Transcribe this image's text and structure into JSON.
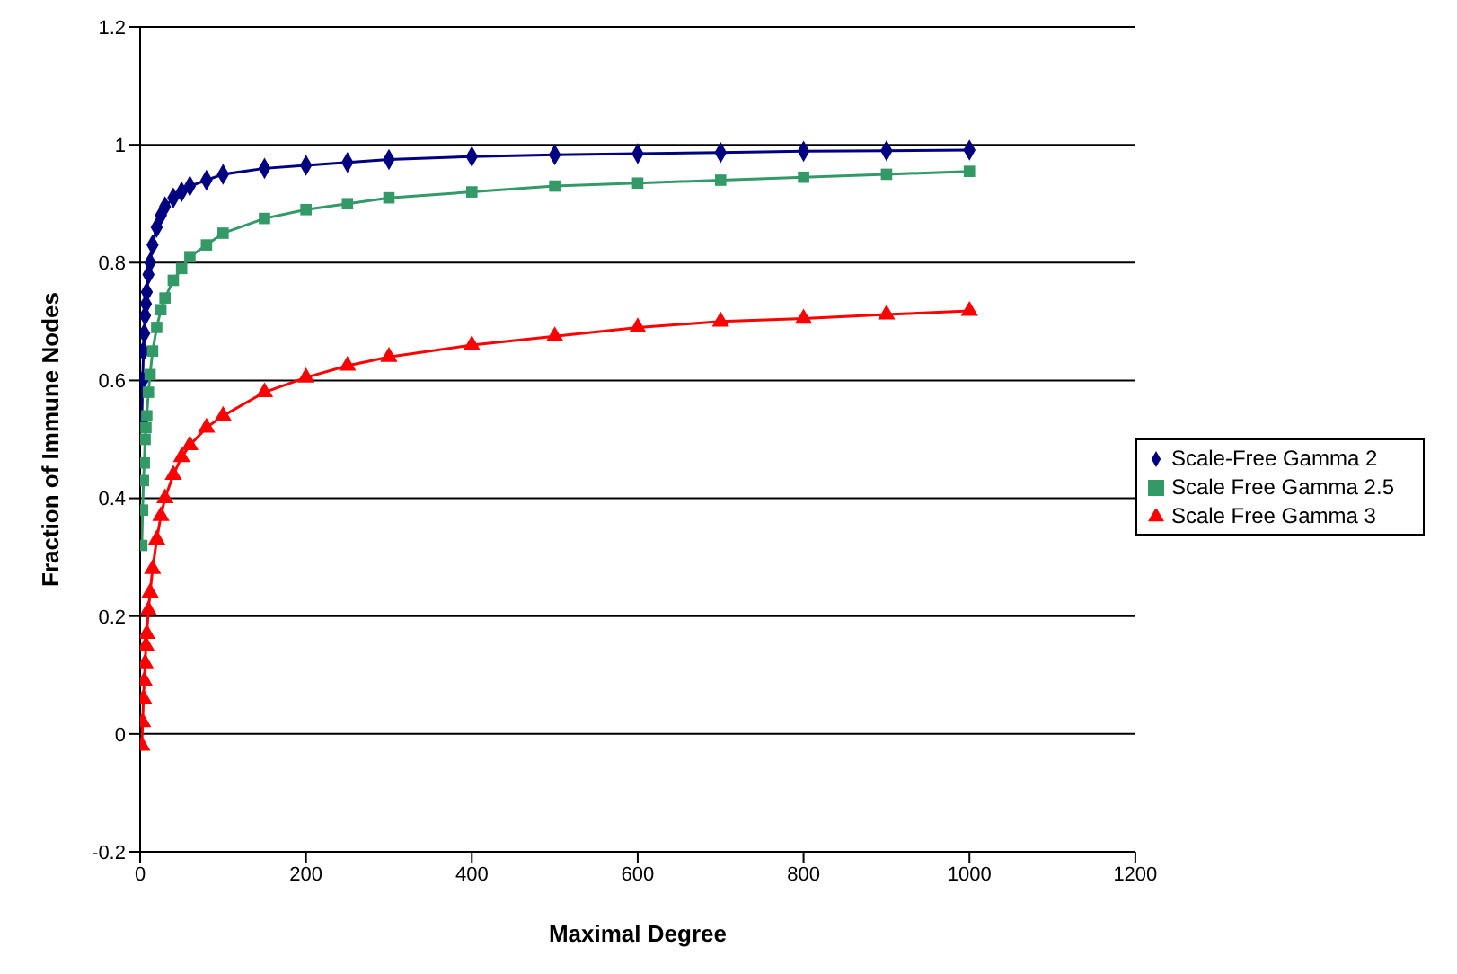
{
  "chart_data": {
    "type": "line",
    "xlabel": "Maximal Degree",
    "ylabel": "Fraction of Immune Nodes",
    "x": [
      2,
      3,
      4,
      5,
      6,
      7,
      8,
      10,
      12,
      15,
      20,
      25,
      30,
      40,
      50,
      60,
      80,
      100,
      150,
      200,
      250,
      300,
      400,
      500,
      600,
      700,
      800,
      900,
      1000
    ],
    "series": [
      {
        "name": "Scale-Free Gamma 2",
        "color": "#000080",
        "marker": "diamond",
        "values": [
          0.53,
          0.6,
          0.65,
          0.68,
          0.71,
          0.73,
          0.75,
          0.78,
          0.8,
          0.83,
          0.86,
          0.88,
          0.895,
          0.91,
          0.92,
          0.93,
          0.94,
          0.95,
          0.96,
          0.965,
          0.97,
          0.975,
          0.98,
          0.983,
          0.985,
          0.987,
          0.989,
          0.99,
          0.991
        ]
      },
      {
        "name": "Scale Free Gamma 2.5",
        "color": "#339966",
        "marker": "square",
        "values": [
          0.32,
          0.38,
          0.43,
          0.46,
          0.5,
          0.52,
          0.54,
          0.58,
          0.61,
          0.65,
          0.69,
          0.72,
          0.74,
          0.77,
          0.79,
          0.81,
          0.83,
          0.85,
          0.875,
          0.89,
          0.9,
          0.91,
          0.92,
          0.93,
          0.935,
          0.94,
          0.945,
          0.95,
          0.955
        ]
      },
      {
        "name": "Scale Free Gamma 3",
        "color": "#ff0000",
        "marker": "triangle",
        "values": [
          -0.02,
          0.02,
          0.06,
          0.09,
          0.12,
          0.15,
          0.17,
          0.21,
          0.24,
          0.28,
          0.33,
          0.37,
          0.4,
          0.44,
          0.47,
          0.49,
          0.52,
          0.54,
          0.58,
          0.605,
          0.625,
          0.64,
          0.66,
          0.675,
          0.69,
          0.7,
          0.705,
          0.712,
          0.718
        ]
      }
    ],
    "xlim": [
      0,
      1200
    ],
    "xticks": [
      0,
      200,
      400,
      600,
      800,
      1000,
      1200
    ],
    "ylim": [
      -0.2,
      1.2
    ],
    "yticks": [
      -0.2,
      0,
      0.2,
      0.4,
      0.6,
      0.8,
      1,
      1.2
    ],
    "grid": "y",
    "legend": "right"
  }
}
